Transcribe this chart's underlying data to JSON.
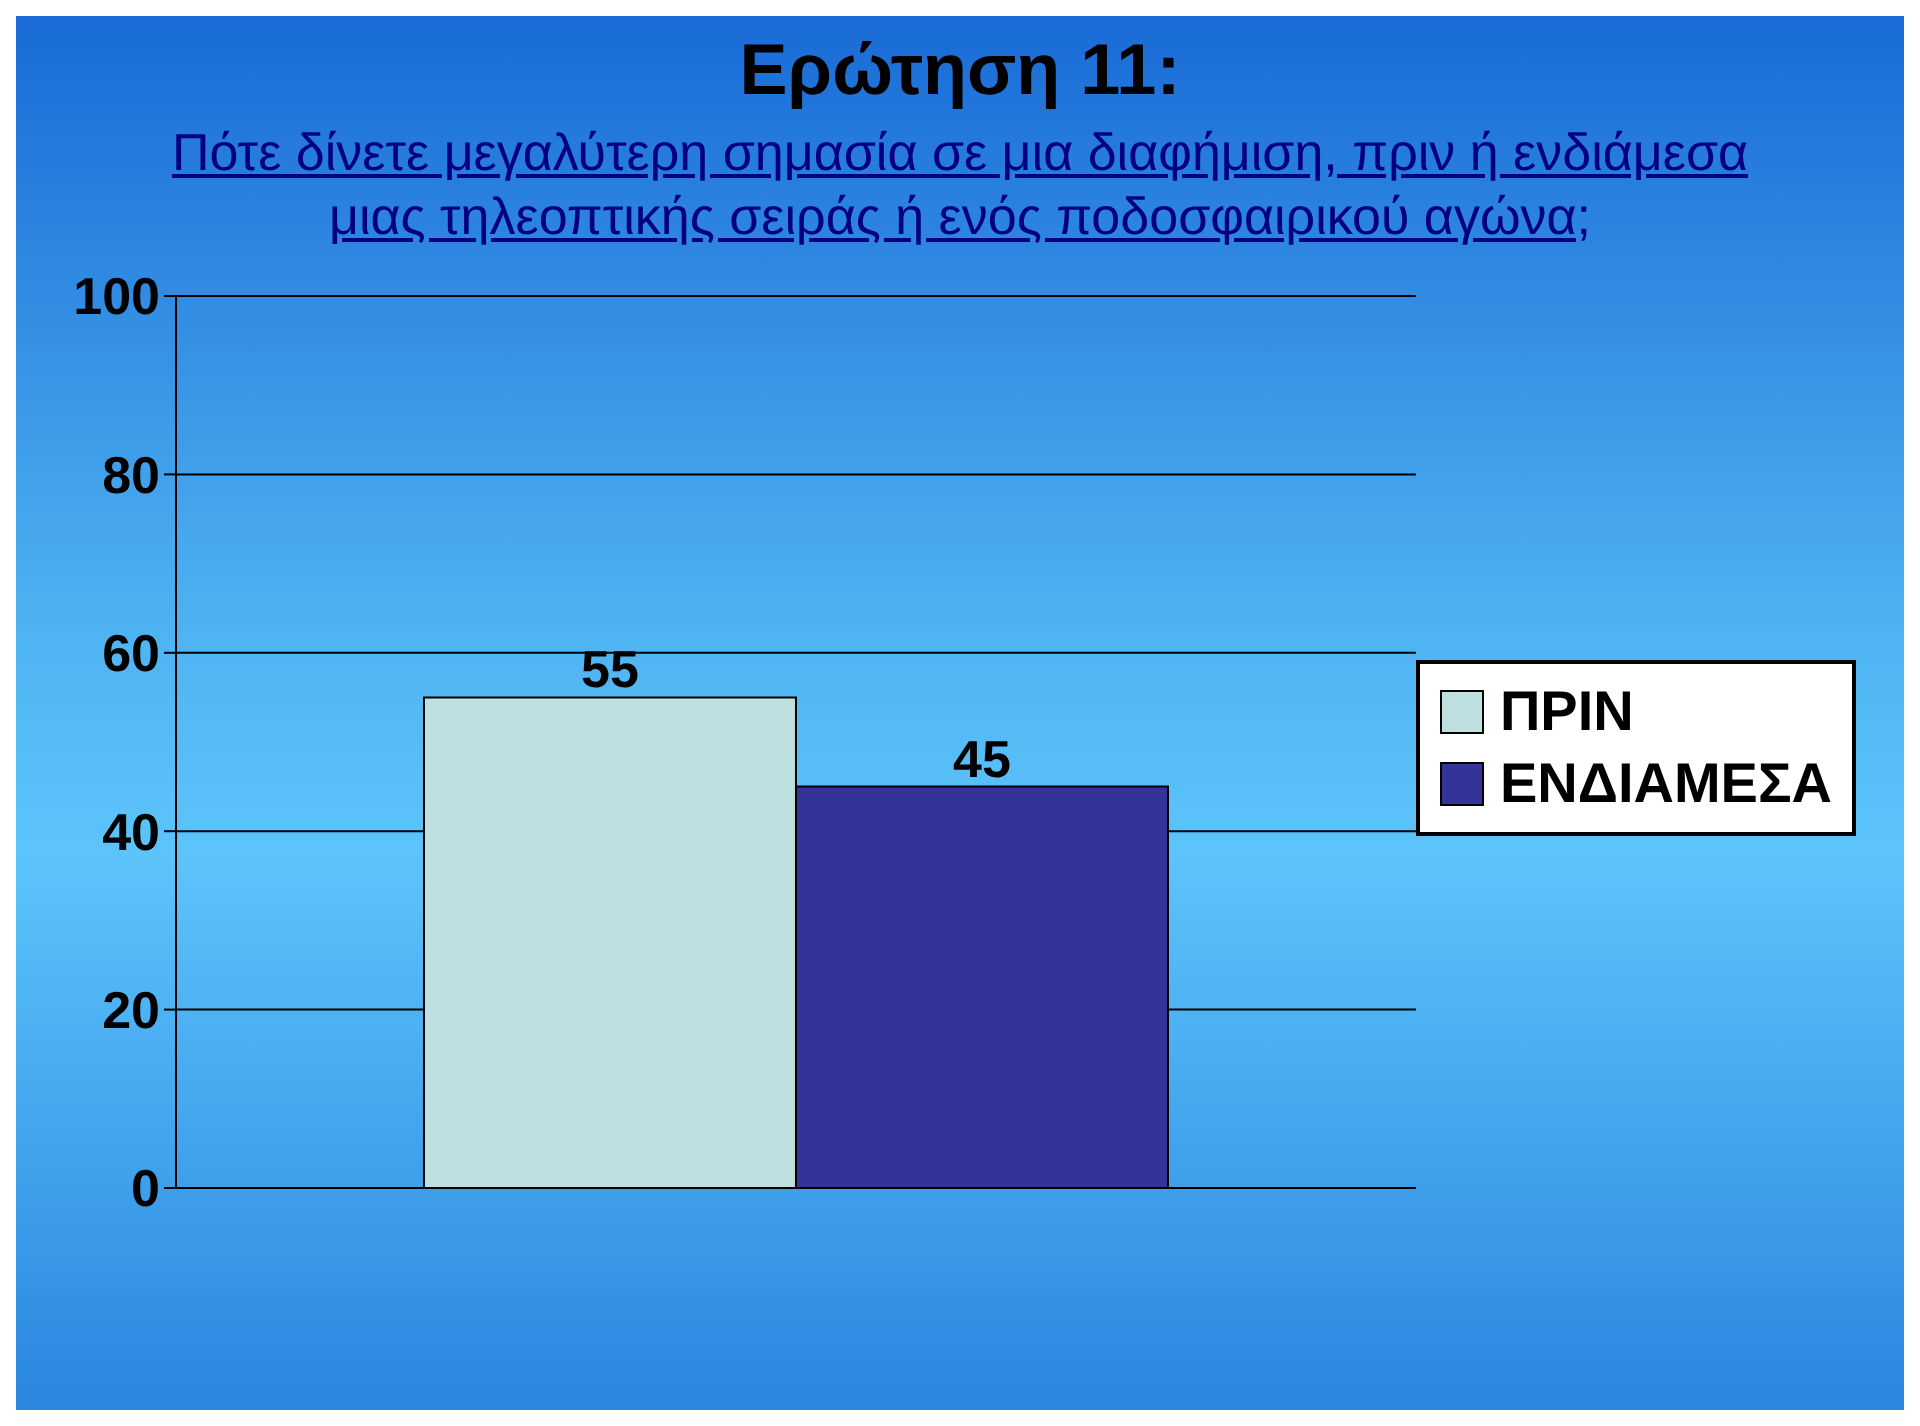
{
  "chart_data": {
    "type": "bar",
    "title": "Ερώτηση 11:",
    "subtitle": "Πότε δίνετε μεγαλύτερη σημασία σε μια διαφήμιση, πριν ή ενδιάμεσα μιας τηλεοπτικής σειράς ή ενός ποδοσφαιρικού αγώνα;",
    "categories": [
      null
    ],
    "series": [
      {
        "name": "ΠΡΙΝ",
        "color": "#bfe0e0",
        "values": [
          55
        ]
      },
      {
        "name": "ΕΝΔΙΑΜΕΣΑ",
        "color": "#333399",
        "values": [
          45
        ]
      }
    ],
    "ylim": [
      0,
      100
    ],
    "yticks": [
      0,
      20,
      40,
      60,
      80,
      100
    ],
    "grid": "y",
    "legend": "right",
    "data_labels": true
  }
}
